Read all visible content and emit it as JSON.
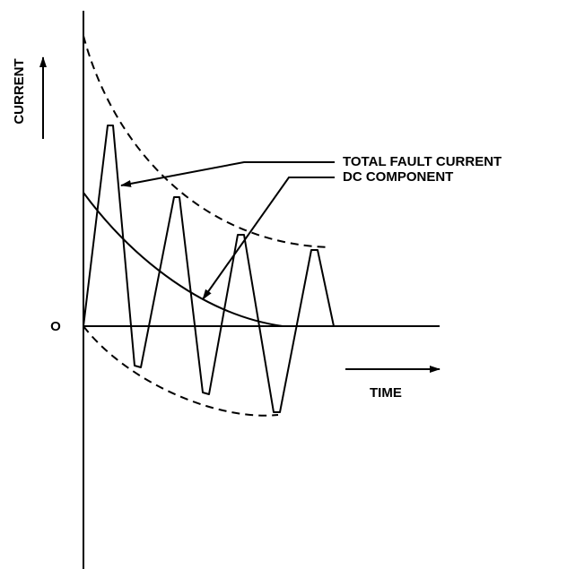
{
  "labels": {
    "y_axis": "CURRENT",
    "origin": "O",
    "x_axis": "TIME",
    "total": "TOTAL FAULT CURRENT",
    "dc": "DC COMPONENT"
  }
}
